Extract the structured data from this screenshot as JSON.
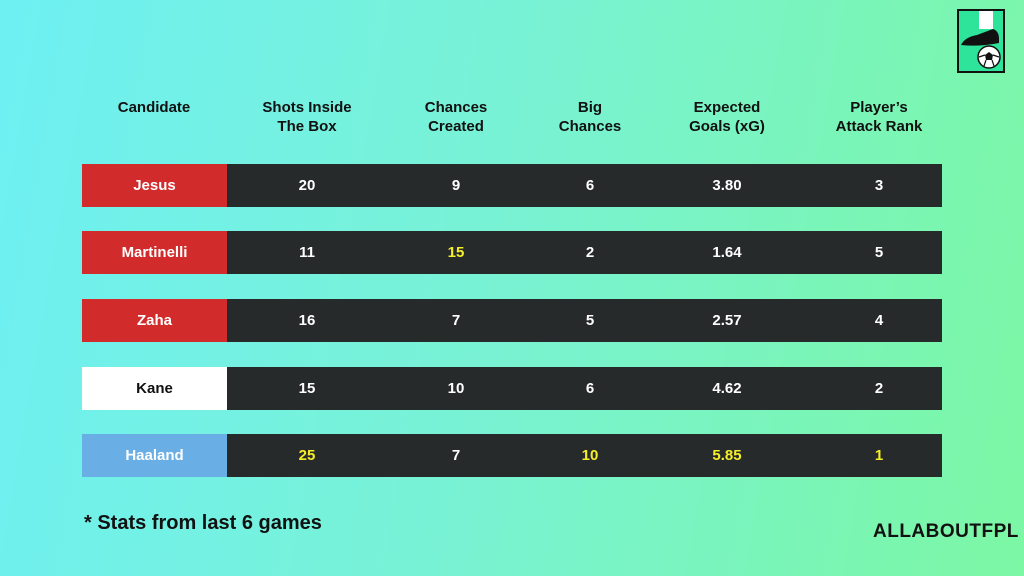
{
  "colors": {
    "row_bg": "#272a2a",
    "highlight": "#f5ee2a",
    "red": "#d22b2b",
    "white": "#ffffff",
    "sky_blue": "#6aaee6"
  },
  "logo_icon": "boot-and-ball-icon",
  "headers": [
    "Candidate",
    "Shots Inside\nThe Box",
    "Chances\nCreated",
    "Big\nChances",
    "Expected\nGoals (xG)",
    "Player’s\nAttack Rank"
  ],
  "rows": [
    {
      "name": "Jesus",
      "color": "#d22b2b",
      "text_color": "#ffffff",
      "values": [
        "20",
        "9",
        "6",
        "3.80",
        "3"
      ],
      "highlight": [
        false,
        false,
        false,
        false,
        false
      ]
    },
    {
      "name": "Martinelli",
      "color": "#d22b2b",
      "text_color": "#ffffff",
      "values": [
        "11",
        "15",
        "2",
        "1.64",
        "5"
      ],
      "highlight": [
        false,
        true,
        false,
        false,
        false
      ]
    },
    {
      "name": "Zaha",
      "color": "#d22b2b",
      "text_color": "#ffffff",
      "values": [
        "16",
        "7",
        "5",
        "2.57",
        "4"
      ],
      "highlight": [
        false,
        false,
        false,
        false,
        false
      ]
    },
    {
      "name": "Kane",
      "color": "#ffffff",
      "text_color": "#111111",
      "values": [
        "15",
        "10",
        "6",
        "4.62",
        "2"
      ],
      "highlight": [
        false,
        false,
        false,
        false,
        false
      ]
    },
    {
      "name": "Haaland",
      "color": "#6aaee6",
      "text_color": "#ffffff",
      "values": [
        "25",
        "7",
        "10",
        "5.85",
        "1"
      ],
      "highlight": [
        true,
        false,
        true,
        true,
        true
      ]
    }
  ],
  "footnote": "*  Stats from last 6 games",
  "brand": "ALLABOUTFPL"
}
